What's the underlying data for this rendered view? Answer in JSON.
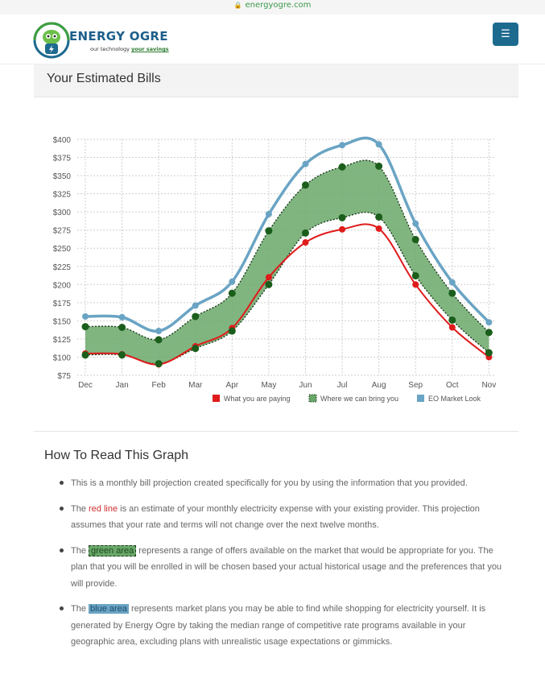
{
  "browser": {
    "url": "energyogre.com"
  },
  "header": {
    "brand": "ENERGY OGRE",
    "tagline_prefix": "our technology ",
    "tagline_emphasis": "your savings",
    "menu_icon": "hamburger-menu-icon"
  },
  "panel": {
    "title": "Your Estimated Bills"
  },
  "chart_data": {
    "type": "line",
    "x": [
      "Dec",
      "Jan",
      "Feb",
      "Mar",
      "Apr",
      "May",
      "Jun",
      "Jul",
      "Aug",
      "Sep",
      "Oct",
      "Nov"
    ],
    "ylim": [
      75,
      400
    ],
    "yticks": [
      "$400",
      "$375",
      "$350",
      "$325",
      "$300",
      "$275",
      "$250",
      "$225",
      "$200",
      "$175",
      "$150",
      "$125",
      "$100",
      "$75"
    ],
    "grid": true,
    "legend_position": "bottom-right",
    "series": [
      {
        "name": "What you are paying",
        "color": "#e01b1b",
        "values": [
          105,
          104,
          90,
          115,
          140,
          210,
          258,
          276,
          277,
          200,
          141,
          100
        ]
      },
      {
        "name": "Where we can bring you",
        "color": "#6aa86a",
        "lower": [
          103,
          103,
          91,
          112,
          136,
          200,
          271,
          292,
          293,
          212,
          151,
          106
        ],
        "upper": [
          142,
          141,
          124,
          156,
          188,
          274,
          337,
          362,
          363,
          262,
          188,
          134
        ]
      },
      {
        "name": "EO Market Look",
        "color": "#6aa4c4",
        "values": [
          156,
          155,
          136,
          171,
          204,
          297,
          366,
          392,
          393,
          284,
          203,
          148
        ]
      }
    ]
  },
  "how_to": {
    "title": "How To Read This Graph",
    "b1": "This is a monthly bill projection created specifically for you by using the information that you provided.",
    "b2_pre": "The ",
    "b2_hl": "red line",
    "b2_post": " is an estimate of your monthly electricity expense with your existing provider. This projection assumes that your rate and terms will not change over the next twelve months.",
    "b3_pre": "The ",
    "b3_hl": "green area",
    "b3_post": " represents a range of offers available on the market that would be appropriate for you. The plan that you will be enrolled in will be chosen based your actual historical usage and the preferences that you will provide.",
    "b4_pre": "The ",
    "b4_hl": "blue area",
    "b4_post": " represents market plans you may be able to find while shopping for electricity yourself. It is generated by Energy Ogre by taking the median range of competitive rate programs available in your geographic area, excluding plans with unrealistic usage expectations or gimmicks."
  }
}
